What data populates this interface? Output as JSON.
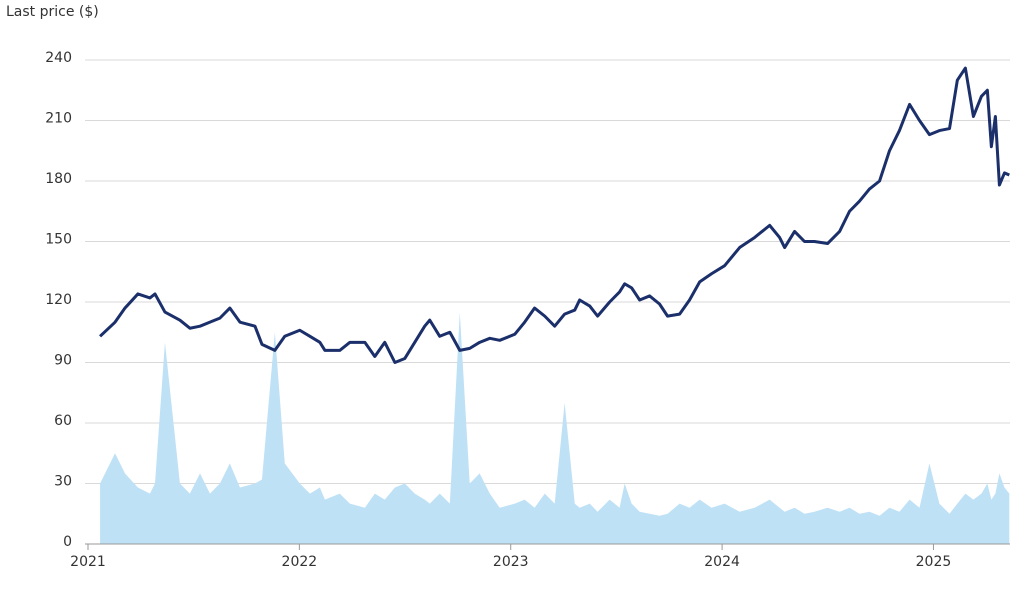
{
  "chart_data": {
    "type": "line",
    "title": "Last price ($)",
    "x": [
      2021.057,
      2021.128,
      2021.175,
      2021.236,
      2021.293,
      2021.317,
      2021.364,
      2021.435,
      2021.482,
      2021.53,
      2021.577,
      2021.624,
      2021.671,
      2021.719,
      2021.79,
      2021.823,
      2021.884,
      2021.931,
      2022.002,
      2022.05,
      2022.097,
      2022.121,
      2022.191,
      2022.239,
      2022.31,
      2022.357,
      2022.404,
      2022.452,
      2022.499,
      2022.546,
      2022.593,
      2022.617,
      2022.664,
      2022.712,
      2022.759,
      2022.806,
      2022.853,
      2022.901,
      2022.948,
      2023.019,
      2023.066,
      2023.113,
      2023.161,
      2023.208,
      2023.255,
      2023.303,
      2023.326,
      2023.374,
      2023.411,
      2023.468,
      2023.515,
      2023.539,
      2023.572,
      2023.61,
      2023.657,
      2023.704,
      2023.742,
      2023.799,
      2023.846,
      2023.894,
      2023.95,
      2024.012,
      2024.083,
      2024.154,
      2024.225,
      2024.272,
      2024.296,
      2024.343,
      2024.39,
      2024.437,
      2024.499,
      2024.556,
      2024.603,
      2024.65,
      2024.697,
      2024.745,
      2024.792,
      2024.839,
      2024.887,
      2024.934,
      2024.981,
      2025.028,
      2025.076,
      2025.113,
      2025.151,
      2025.189,
      2025.227,
      2025.255,
      2025.274,
      2025.293,
      2025.312,
      2025.336,
      2025.359
    ],
    "series": [
      {
        "color": "#bfe1f6",
        "kind": "area",
        "values": [
          30,
          45,
          35,
          28,
          25,
          30,
          100,
          30,
          25,
          35,
          25,
          30,
          40,
          28,
          30,
          32,
          105,
          40,
          30,
          25,
          28,
          22,
          25,
          20,
          18,
          25,
          22,
          28,
          30,
          25,
          22,
          20,
          25,
          20,
          115,
          30,
          35,
          25,
          18,
          20,
          22,
          18,
          25,
          20,
          70,
          20,
          18,
          20,
          16,
          22,
          18,
          30,
          20,
          16,
          15,
          14,
          15,
          20,
          18,
          22,
          18,
          20,
          16,
          18,
          22,
          18,
          16,
          18,
          15,
          16,
          18,
          16,
          18,
          15,
          16,
          14,
          18,
          16,
          22,
          18,
          40,
          20,
          15,
          20,
          25,
          22,
          25,
          30,
          22,
          25,
          35,
          28,
          25
        ]
      },
      {
        "color": "#1b2f6b",
        "kind": "line",
        "values": [
          103,
          110,
          117,
          124,
          122,
          124,
          115,
          111,
          107,
          108,
          110,
          112,
          117,
          110,
          108,
          99,
          96,
          103,
          106,
          103,
          100,
          96,
          96,
          100,
          100,
          93,
          100,
          90,
          92,
          100,
          108,
          111,
          103,
          105,
          96,
          97,
          100,
          102,
          101,
          104,
          110,
          117,
          113,
          108,
          114,
          116,
          121,
          118,
          113,
          120,
          125,
          129,
          127,
          121,
          123,
          119,
          113,
          114,
          121,
          130,
          134,
          138,
          147,
          152,
          158,
          152,
          147,
          155,
          150,
          150,
          149,
          155,
          165,
          170,
          176,
          180,
          195,
          205,
          218,
          210,
          203,
          205,
          206,
          230,
          236,
          212,
          222,
          225,
          197,
          212,
          178,
          184,
          183
        ]
      }
    ],
    "xlim": [
      2021,
      2025.4
    ],
    "xticks": [
      2021,
      2022,
      2023,
      2024,
      2025
    ],
    "ylim": [
      0,
      240
    ],
    "yticks": [
      0,
      30,
      60,
      90,
      120,
      150,
      180,
      210,
      240
    ],
    "grid": true
  }
}
